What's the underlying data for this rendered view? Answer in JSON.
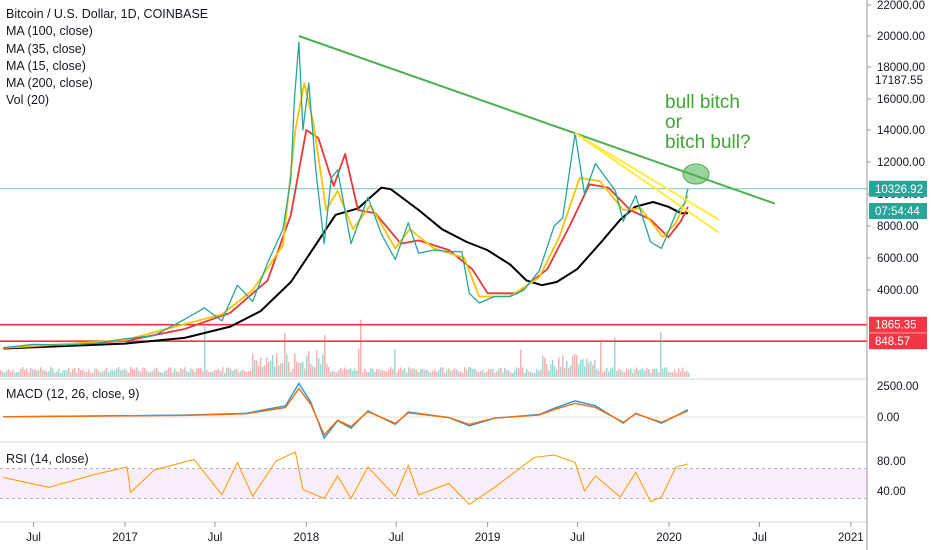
{
  "chart_data": {
    "type": "line",
    "title": "Bitcoin / U.S. Dollar, 1D, COINBASE",
    "indicators": [
      "MA (100, close)",
      "MA (35, close)",
      "MA (15, close)",
      "MA (200, close)",
      "Vol (20)"
    ],
    "x_ticks": [
      "Jul",
      "2017",
      "Jul",
      "2018",
      "Jul",
      "2019",
      "Jul",
      "2020",
      "Jul",
      "2021"
    ],
    "y_ticks": [
      "22000.00",
      "20000.00",
      "18000.00",
      "16000.00",
      "14000.00",
      "12000.00",
      "10000.00",
      "8000.00",
      "6000.00",
      "4000.00"
    ],
    "y_range": [
      0,
      22000
    ],
    "price_tags": [
      {
        "label": "17187.55",
        "value": 17187.55,
        "bg": "#ffffff",
        "fg": "#131722"
      },
      {
        "label": "10326.92",
        "value": 10326.92,
        "bg": "#26a69a",
        "fg": "#ffffff"
      },
      {
        "label": "07:54:44",
        "value": 9250,
        "bg": "#26a69a",
        "fg": "#ffffff"
      },
      {
        "label": "1865.35",
        "value": 1865.35,
        "bg": "#f23645",
        "fg": "#ffffff"
      },
      {
        "label": "848.57",
        "value": 848.57,
        "bg": "#f23645",
        "fg": "#ffffff"
      }
    ],
    "horizontal_lines": [
      {
        "value": 1865.35,
        "color": "#f23645"
      },
      {
        "value": 848.57,
        "color": "#f23645"
      },
      {
        "value": 10326.92,
        "color": "#26a69a"
      }
    ],
    "trendline": {
      "from": [
        "2017-12-17",
        20000
      ],
      "to": [
        "2020-08-01",
        9400
      ],
      "color": "#4caf50"
    },
    "wedge_lines": [
      {
        "from": [
          "2019-06-26",
          13800
        ],
        "to": [
          "2020-04-10",
          7600
        ],
        "color": "#ffeb3b"
      },
      {
        "from": [
          "2019-06-26",
          13800
        ],
        "to": [
          "2020-04-10",
          8400
        ],
        "color": "#ffeb3b"
      }
    ],
    "annotation": {
      "lines": [
        "bull bitch",
        "or",
        "bitch bull?"
      ],
      "color": "#3fa535"
    },
    "series": [
      {
        "name": "Price",
        "color": "#26a69a",
        "points": [
          [
            "2016-05-01",
            450
          ],
          [
            "2016-07-01",
            650
          ],
          [
            "2016-09-01",
            610
          ],
          [
            "2016-11-01",
            720
          ],
          [
            "2017-01-01",
            990
          ],
          [
            "2017-03-01",
            1200
          ],
          [
            "2017-05-01",
            2200
          ],
          [
            "2017-06-10",
            2900
          ],
          [
            "2017-07-15",
            2100
          ],
          [
            "2017-08-15",
            4300
          ],
          [
            "2017-09-15",
            3300
          ],
          [
            "2017-10-15",
            5700
          ],
          [
            "2017-11-15",
            7800
          ],
          [
            "2017-12-01",
            11000
          ],
          [
            "2017-12-08",
            16000
          ],
          [
            "2017-12-17",
            19600
          ],
          [
            "2017-12-25",
            14000
          ],
          [
            "2018-01-06",
            17000
          ],
          [
            "2018-01-20",
            11500
          ],
          [
            "2018-02-06",
            6900
          ],
          [
            "2018-02-20",
            11000
          ],
          [
            "2018-03-05",
            11500
          ],
          [
            "2018-04-01",
            6900
          ],
          [
            "2018-05-05",
            9800
          ],
          [
            "2018-06-01",
            7500
          ],
          [
            "2018-06-29",
            5900
          ],
          [
            "2018-07-25",
            8200
          ],
          [
            "2018-08-15",
            6300
          ],
          [
            "2018-09-15",
            6500
          ],
          [
            "2018-10-15",
            6400
          ],
          [
            "2018-11-10",
            6400
          ],
          [
            "2018-11-25",
            3800
          ],
          [
            "2018-12-15",
            3200
          ],
          [
            "2019-01-15",
            3600
          ],
          [
            "2019-02-15",
            3600
          ],
          [
            "2019-03-15",
            4000
          ],
          [
            "2019-04-15",
            5200
          ],
          [
            "2019-05-15",
            8000
          ],
          [
            "2019-06-01",
            8500
          ],
          [
            "2019-06-26",
            13800
          ],
          [
            "2019-07-15",
            10000
          ],
          [
            "2019-08-06",
            11900
          ],
          [
            "2019-09-15",
            10200
          ],
          [
            "2019-10-01",
            8300
          ],
          [
            "2019-10-26",
            9900
          ],
          [
            "2019-11-25",
            7000
          ],
          [
            "2019-12-17",
            6600
          ],
          [
            "2020-01-15",
            8800
          ],
          [
            "2020-02-01",
            9400
          ],
          [
            "2020-02-08",
            10326
          ]
        ]
      },
      {
        "name": "MA (15, close)",
        "color": "#ffc107",
        "points": [
          [
            "2016-05-01",
            440
          ],
          [
            "2017-01-01",
            920
          ],
          [
            "2017-05-01",
            1900
          ],
          [
            "2017-07-15",
            2500
          ],
          [
            "2017-09-15",
            4000
          ],
          [
            "2017-11-15",
            6800
          ],
          [
            "2017-12-10",
            14000
          ],
          [
            "2017-12-28",
            17000
          ],
          [
            "2018-01-15",
            14500
          ],
          [
            "2018-02-10",
            9000
          ],
          [
            "2018-03-05",
            10200
          ],
          [
            "2018-04-05",
            7800
          ],
          [
            "2018-05-10",
            9300
          ],
          [
            "2018-06-29",
            6600
          ],
          [
            "2018-07-28",
            7800
          ],
          [
            "2018-09-15",
            6600
          ],
          [
            "2018-11-15",
            6000
          ],
          [
            "2018-12-15",
            3600
          ],
          [
            "2019-02-15",
            3600
          ],
          [
            "2019-04-15",
            4800
          ],
          [
            "2019-05-25",
            7300
          ],
          [
            "2019-07-05",
            11000
          ],
          [
            "2019-08-15",
            10800
          ],
          [
            "2019-10-01",
            9000
          ],
          [
            "2019-11-05",
            9100
          ],
          [
            "2019-12-20",
            7300
          ],
          [
            "2020-01-15",
            8200
          ],
          [
            "2020-02-08",
            9900
          ]
        ]
      },
      {
        "name": "MA (35, close)",
        "color": "#e53935",
        "points": [
          [
            "2016-05-01",
            430
          ],
          [
            "2017-01-01",
            860
          ],
          [
            "2017-05-01",
            1600
          ],
          [
            "2017-08-01",
            2600
          ],
          [
            "2017-10-15",
            4600
          ],
          [
            "2017-12-01",
            8700
          ],
          [
            "2018-01-01",
            14000
          ],
          [
            "2018-01-25",
            13500
          ],
          [
            "2018-02-25",
            10500
          ],
          [
            "2018-03-20",
            12500
          ],
          [
            "2018-04-15",
            9000
          ],
          [
            "2018-05-20",
            8800
          ],
          [
            "2018-07-10",
            6900
          ],
          [
            "2018-08-15",
            7100
          ],
          [
            "2018-10-15",
            6500
          ],
          [
            "2018-12-01",
            5300
          ],
          [
            "2019-01-01",
            3800
          ],
          [
            "2019-03-01",
            3800
          ],
          [
            "2019-05-01",
            5300
          ],
          [
            "2019-06-15",
            8000
          ],
          [
            "2019-07-25",
            10600
          ],
          [
            "2019-09-01",
            10400
          ],
          [
            "2019-10-15",
            9000
          ],
          [
            "2019-11-25",
            8400
          ],
          [
            "2019-12-31",
            7300
          ],
          [
            "2020-01-25",
            8300
          ],
          [
            "2020-02-08",
            9200
          ]
        ]
      },
      {
        "name": "MA (200, close)",
        "color": "#000000",
        "points": [
          [
            "2016-05-01",
            400
          ],
          [
            "2017-01-01",
            700
          ],
          [
            "2017-05-01",
            1050
          ],
          [
            "2017-08-01",
            1750
          ],
          [
            "2017-10-01",
            2700
          ],
          [
            "2017-12-01",
            4500
          ],
          [
            "2018-01-15",
            6600
          ],
          [
            "2018-03-01",
            8700
          ],
          [
            "2018-04-15",
            9100
          ],
          [
            "2018-06-01",
            10400
          ],
          [
            "2018-06-20",
            10300
          ],
          [
            "2018-08-15",
            9000
          ],
          [
            "2018-10-01",
            7800
          ],
          [
            "2018-11-20",
            7000
          ],
          [
            "2018-12-31",
            6500
          ],
          [
            "2019-02-15",
            5600
          ],
          [
            "2019-03-20",
            4600
          ],
          [
            "2019-04-20",
            4300
          ],
          [
            "2019-05-20",
            4500
          ],
          [
            "2019-06-30",
            5300
          ],
          [
            "2019-08-15",
            6900
          ],
          [
            "2019-09-25",
            8400
          ],
          [
            "2019-10-25",
            9200
          ],
          [
            "2019-11-30",
            9500
          ],
          [
            "2019-12-31",
            9200
          ],
          [
            "2020-01-25",
            8800
          ],
          [
            "2020-02-08",
            8800
          ]
        ]
      }
    ],
    "macd": {
      "label": "MACD (12, 26, close, 9)",
      "y_ticks": [
        "2500.00",
        "0.00"
      ],
      "y_range": [
        -2000,
        3000
      ],
      "points": [
        [
          "2016-05-01",
          20
        ],
        [
          "2017-05-01",
          150
        ],
        [
          "2017-09-01",
          300
        ],
        [
          "2017-11-20",
          900
        ],
        [
          "2017-12-17",
          2700
        ],
        [
          "2018-01-10",
          1200
        ],
        [
          "2018-02-06",
          -1700
        ],
        [
          "2018-03-05",
          -300
        ],
        [
          "2018-04-01",
          -900
        ],
        [
          "2018-05-05",
          500
        ],
        [
          "2018-06-29",
          -600
        ],
        [
          "2018-07-25",
          400
        ],
        [
          "2018-10-15",
          -50
        ],
        [
          "2018-11-25",
          -700
        ],
        [
          "2019-01-15",
          -100
        ],
        [
          "2019-04-15",
          200
        ],
        [
          "2019-05-15",
          700
        ],
        [
          "2019-06-26",
          1300
        ],
        [
          "2019-08-06",
          900
        ],
        [
          "2019-10-01",
          -500
        ],
        [
          "2019-10-26",
          300
        ],
        [
          "2019-12-17",
          -500
        ],
        [
          "2020-02-08",
          600
        ]
      ]
    },
    "rsi": {
      "label": "RSI (14, close)",
      "y_ticks": [
        "80.00",
        "40.00"
      ],
      "y_range": [
        10,
        100
      ],
      "points": [
        [
          "2016-05-01",
          58
        ],
        [
          "2016-08-01",
          45
        ],
        [
          "2016-11-01",
          62
        ],
        [
          "2017-01-05",
          72
        ],
        [
          "2017-01-12",
          38
        ],
        [
          "2017-03-01",
          68
        ],
        [
          "2017-05-20",
          82
        ],
        [
          "2017-07-15",
          35
        ],
        [
          "2017-08-15",
          78
        ],
        [
          "2017-09-15",
          33
        ],
        [
          "2017-11-01",
          80
        ],
        [
          "2017-12-10",
          92
        ],
        [
          "2017-12-25",
          42
        ],
        [
          "2018-02-06",
          30
        ],
        [
          "2018-03-05",
          60
        ],
        [
          "2018-04-01",
          30
        ],
        [
          "2018-05-05",
          72
        ],
        [
          "2018-06-29",
          33
        ],
        [
          "2018-07-25",
          74
        ],
        [
          "2018-08-15",
          35
        ],
        [
          "2018-10-15",
          50
        ],
        [
          "2018-11-25",
          22
        ],
        [
          "2019-01-15",
          45
        ],
        [
          "2019-04-05",
          85
        ],
        [
          "2019-05-15",
          88
        ],
        [
          "2019-06-26",
          78
        ],
        [
          "2019-07-15",
          40
        ],
        [
          "2019-08-06",
          60
        ],
        [
          "2019-09-25",
          32
        ],
        [
          "2019-10-26",
          65
        ],
        [
          "2019-11-25",
          26
        ],
        [
          "2019-12-17",
          32
        ],
        [
          "2020-01-15",
          72
        ],
        [
          "2020-02-08",
          76
        ]
      ]
    }
  }
}
